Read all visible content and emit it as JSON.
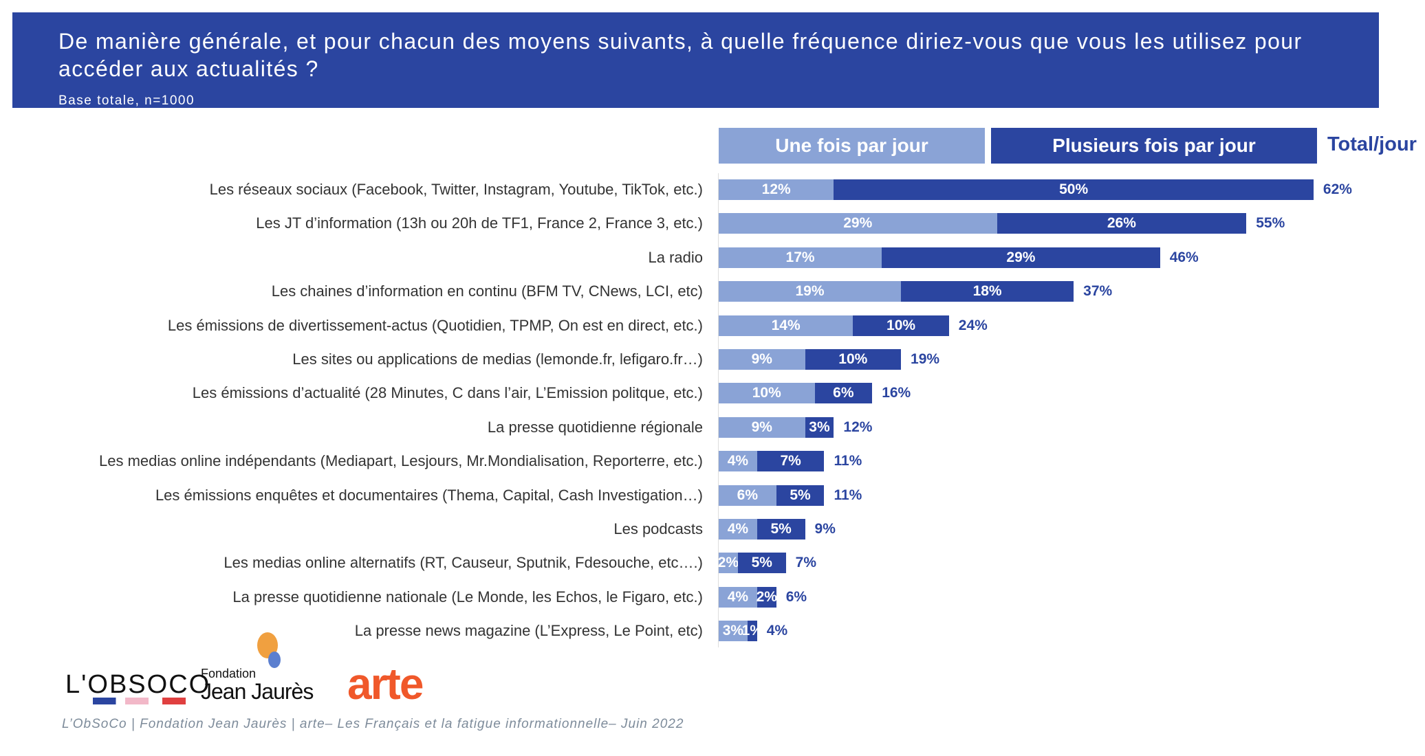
{
  "header": {
    "title": "De manière générale, et pour chacun des moyens suivants, à quelle fréquence diriez-vous que vous les utilisez pour accéder aux actualités ?",
    "subtitle": "Base totale, n=1000"
  },
  "colors": {
    "once": "#8aa3d6",
    "several": "#2b45a0",
    "banner": "#2b45a0"
  },
  "chart_data": {
    "type": "bar",
    "stacked": true,
    "orientation": "horizontal",
    "legend": [
      "Une fois par jour",
      "Plusieurs fois par jour"
    ],
    "total_label": "Total/jour",
    "categories": [
      "Les réseaux sociaux (Facebook, Twitter, Instagram, Youtube, TikTok, etc.)",
      "Les JT d’information (13h ou 20h de TF1, France 2, France 3, etc.)",
      "La radio",
      "Les chaines d’information en continu (BFM TV, CNews, LCI, etc)",
      "Les émissions de divertissement-actus (Quotidien, TPMP, On est en direct, etc.)",
      "Les sites ou applications de medias (lemonde.fr, lefigaro.fr…)",
      "Les émissions d’actualité (28 Minutes, C dans l’air, L’Emission politque, etc.)",
      "La presse quotidienne régionale",
      "Les medias online indépendants (Mediapart, Lesjours, Mr.Mondialisation, Reporterre, etc.)",
      "Les émissions enquêtes et documentaires (Thema, Capital, Cash Investigation…)",
      "Les podcasts",
      "Les medias online alternatifs (RT, Causeur, Sputnik, Fdesouche, etc….)",
      "La presse quotidienne nationale (Le Monde, les Echos, le Figaro, etc.)",
      "La presse news magazine (L’Express, Le Point, etc)"
    ],
    "series": [
      {
        "name": "Une fois par jour",
        "values": [
          12,
          29,
          17,
          19,
          14,
          9,
          10,
          9,
          4,
          6,
          4,
          2,
          4,
          3
        ]
      },
      {
        "name": "Plusieurs fois par jour",
        "values": [
          50,
          26,
          29,
          18,
          10,
          10,
          6,
          3,
          7,
          5,
          5,
          5,
          2,
          1
        ]
      }
    ],
    "totals": [
      62,
      55,
      46,
      37,
      24,
      19,
      16,
      12,
      11,
      11,
      9,
      7,
      6,
      4
    ]
  },
  "logos": {
    "obsoco": "L'OBSOCO",
    "fjj_small": "Fondation",
    "fjj": "Jean Jaurès",
    "arte": "arte"
  },
  "footer": "L’ObSoCo | Fondation Jean Jaurès | arte– Les Français et la fatigue informationnelle– Juin 2022"
}
